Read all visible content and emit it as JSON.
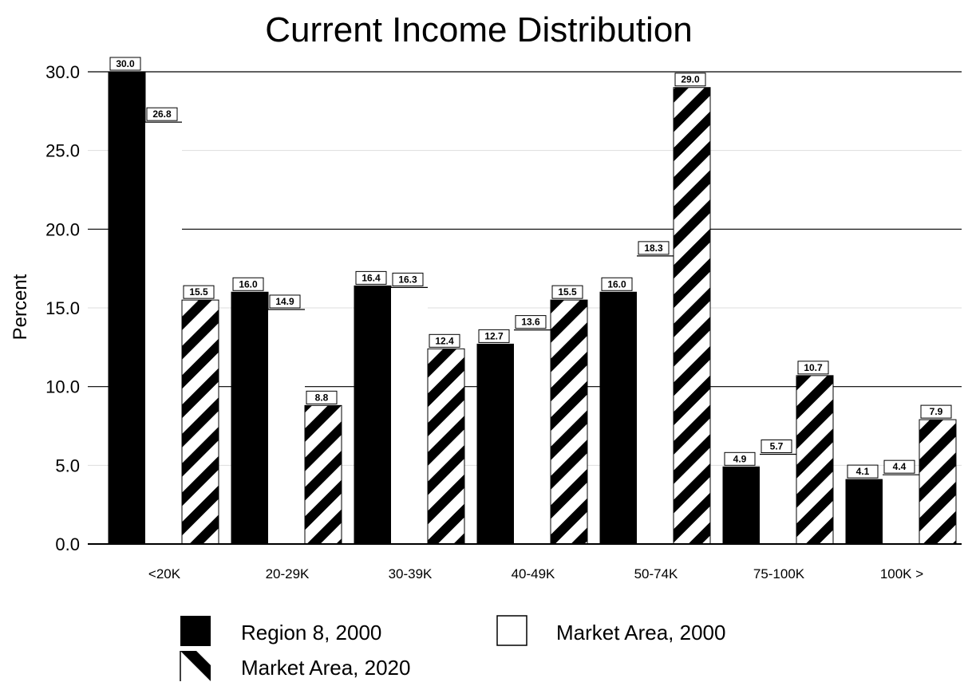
{
  "chart_data": {
    "type": "bar",
    "title": "Current Income Distribution",
    "xlabel": "",
    "ylabel": "Percent",
    "ylim": [
      0,
      30
    ],
    "yticks": [
      "0.0",
      "5.0",
      "10.0",
      "15.0",
      "20.0",
      "25.0",
      "30.0"
    ],
    "categories": [
      "<20K",
      "20-29K",
      "30-39K",
      "40-49K",
      "50-74K",
      "75-100K",
      "100K >"
    ],
    "series": [
      {
        "name": "Region 8, 2000",
        "fill": "solid-black",
        "values": [
          30.0,
          16.0,
          16.4,
          12.7,
          16.0,
          4.9,
          4.1
        ]
      },
      {
        "name": "Market Area, 2000",
        "fill": "white",
        "values": [
          26.8,
          14.9,
          16.3,
          13.6,
          18.3,
          5.7,
          4.4
        ]
      },
      {
        "name": "Market Area, 2020",
        "fill": "diagonal-stripes",
        "values": [
          15.5,
          8.8,
          12.4,
          15.5,
          29.0,
          10.7,
          7.9
        ]
      }
    ],
    "data_labels": [
      [
        "30.0",
        "16.0",
        "16.4",
        "12.7",
        "16.0",
        "4.9",
        "4.1"
      ],
      [
        "26.8",
        "14.9",
        "16.3",
        "13.6",
        "18.3",
        "5.7",
        "4.4"
      ],
      [
        "15.5",
        "8.8",
        "12.4",
        "15.5",
        "29.0",
        "10.7",
        "7.9"
      ]
    ],
    "grid": "horizontal-major",
    "legend_position": "bottom",
    "colors": {
      "bar_edge": "#000000",
      "solid": "#000000",
      "stripe": "#000000",
      "background": "#ffffff"
    }
  }
}
